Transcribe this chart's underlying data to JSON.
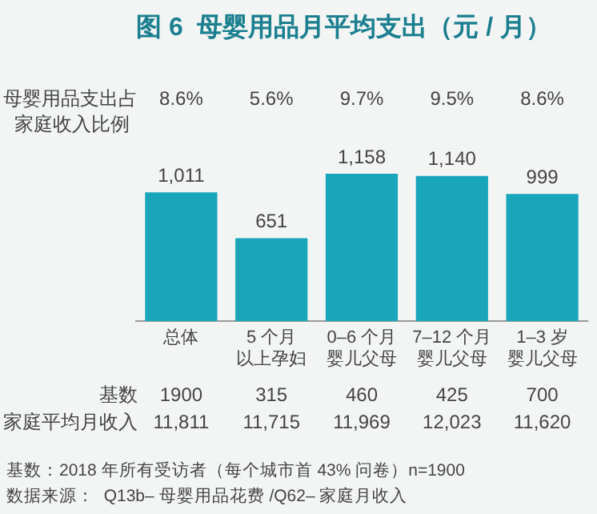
{
  "chart_data": {
    "type": "bar",
    "title": "图 6  母婴用品月平均支出（元 / 月）",
    "categories": [
      "总体",
      "5 个月以上孕妇",
      "0–6 个月婴儿父母",
      "7–12 个月婴儿父母",
      "1–3 岁婴儿父母"
    ],
    "values": [
      1011,
      651,
      1158,
      1140,
      999
    ],
    "value_labels": [
      "1,011",
      "651",
      "1,158",
      "1,140",
      "999"
    ],
    "color": "#1aa6ba",
    "grid": false,
    "legend": false,
    "annotations": [
      "母婴用品支出占家庭收入比例",
      "8.6%",
      "5.6%",
      "9.7%",
      "9.5%",
      "8.6%",
      "基数",
      "1900",
      "315",
      "460",
      "425",
      "700",
      "家庭平均月收入",
      "11,811",
      "11,715",
      "11,969",
      "12,023",
      "11,620",
      "基数：2018 年所有受访者（每个城市首 43% 问卷）n=1900",
      "数据来源：  Q13b– 母婴用品花费 /Q62– 家庭月收入"
    ]
  }
}
